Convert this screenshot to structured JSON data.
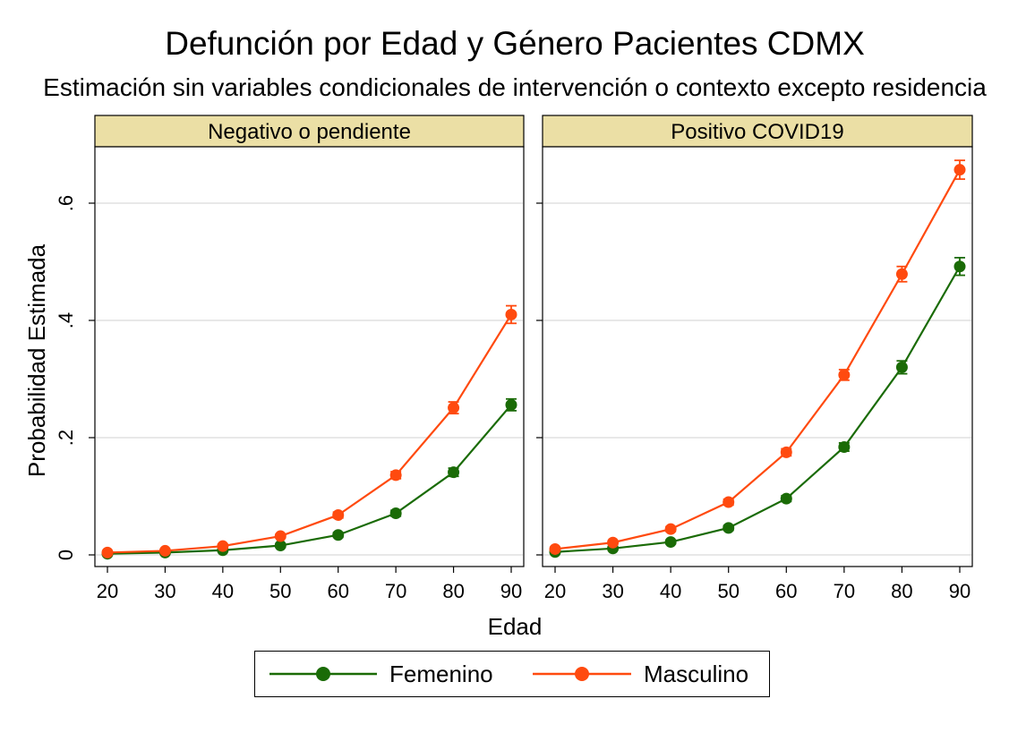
{
  "chart_data": {
    "type": "line",
    "title": "Defunción por Edad y Género Pacientes CDMX",
    "subtitle": "Estimación sin variables condicionales de intervención o contexto excepto residencia",
    "xlabel": "Edad",
    "ylabel": "Probabilidad Estimada",
    "x": [
      20,
      30,
      40,
      50,
      60,
      70,
      80,
      90
    ],
    "xlim": [
      20,
      90
    ],
    "ylim": [
      0,
      0.7
    ],
    "yticks": [
      0,
      0.2,
      0.4,
      0.6
    ],
    "ytick_labels": [
      "0",
      ".2",
      ".4",
      ".6"
    ],
    "grid": true,
    "legend_position": "bottom",
    "error_bars": true,
    "colors": {
      "Femenino": "#1a6b06",
      "Masculino": "#ff4a0f",
      "panel_header": "#ebdfa5"
    },
    "panels": [
      {
        "title": "Negativo o pendiente",
        "series": [
          {
            "name": "Femenino",
            "values": [
              0.002,
              0.004,
              0.008,
              0.016,
              0.034,
              0.071,
              0.141,
              0.256
            ],
            "ci": [
              0.002,
              0.002,
              0.002,
              0.003,
              0.004,
              0.005,
              0.007,
              0.01
            ]
          },
          {
            "name": "Masculino",
            "values": [
              0.004,
              0.007,
              0.015,
              0.032,
              0.068,
              0.136,
              0.251,
              0.41
            ],
            "ci": [
              0.002,
              0.002,
              0.003,
              0.003,
              0.005,
              0.006,
              0.01,
              0.015
            ]
          }
        ]
      },
      {
        "title": "Positivo COVID19",
        "series": [
          {
            "name": "Femenino",
            "values": [
              0.005,
              0.011,
              0.022,
              0.046,
              0.096,
              0.184,
              0.32,
              0.492
            ],
            "ci": [
              0.002,
              0.003,
              0.003,
              0.004,
              0.005,
              0.007,
              0.011,
              0.015
            ]
          },
          {
            "name": "Masculino",
            "values": [
              0.01,
              0.021,
              0.044,
              0.09,
              0.175,
              0.307,
              0.479,
              0.657
            ],
            "ci": [
              0.003,
              0.003,
              0.004,
              0.005,
              0.006,
              0.009,
              0.013,
              0.016
            ]
          }
        ]
      }
    ]
  }
}
